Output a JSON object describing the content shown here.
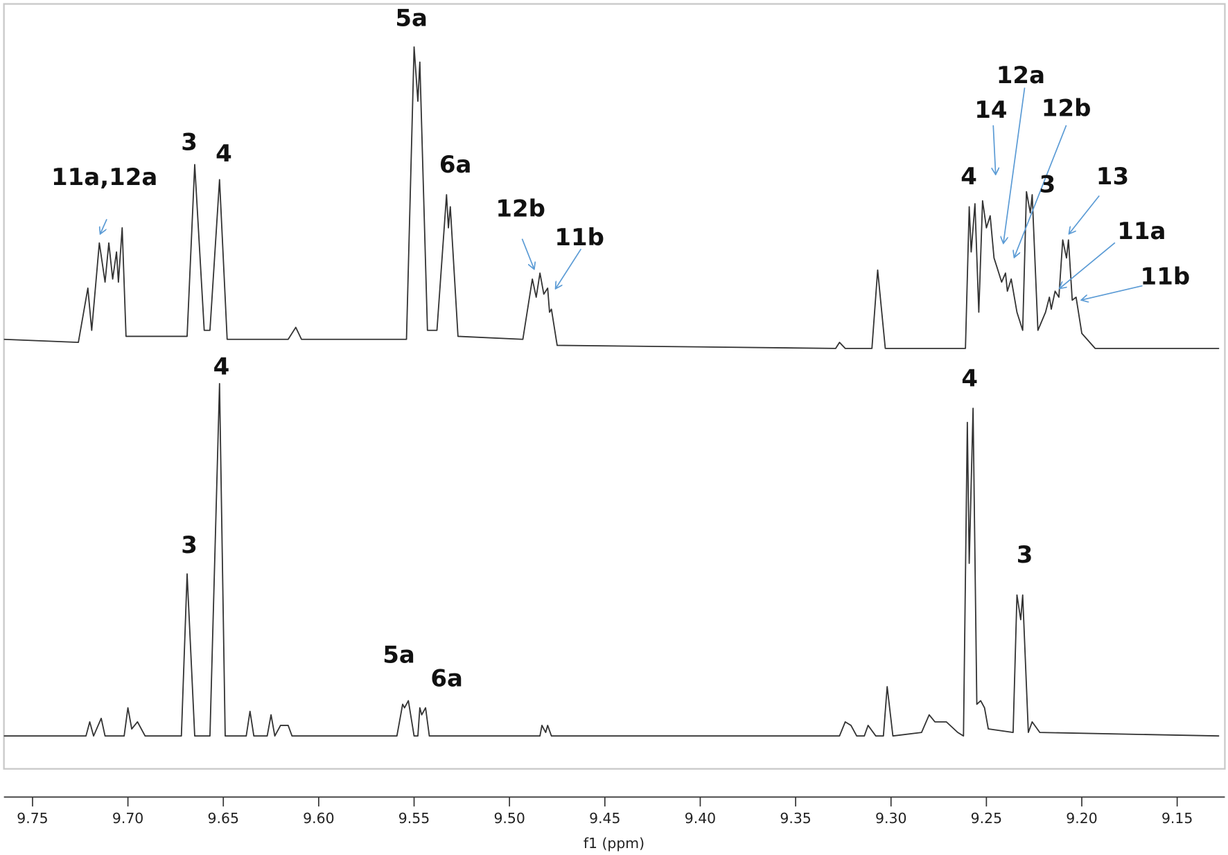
{
  "chart_data": [
    {
      "type": "line",
      "color": "#333333",
      "xlim": [
        9.765,
        9.125
      ],
      "ylim": [
        0,
        100
      ],
      "x": [
        9.765,
        9.726,
        9.721,
        9.719,
        9.715,
        9.712,
        9.71,
        9.708,
        9.706,
        9.705,
        9.703,
        9.701,
        9.669,
        9.665,
        9.66,
        9.657,
        9.652,
        9.648,
        9.616,
        9.612,
        9.609,
        9.554,
        9.55,
        9.548,
        9.547,
        9.543,
        9.538,
        9.533,
        9.532,
        9.531,
        9.527,
        9.493,
        9.488,
        9.486,
        9.484,
        9.482,
        9.48,
        9.479,
        9.478,
        9.475,
        9.329,
        9.327,
        9.324,
        9.31,
        9.307,
        9.303,
        9.261,
        9.259,
        9.258,
        9.256,
        9.254,
        9.252,
        9.25,
        9.248,
        9.246,
        9.244,
        9.242,
        9.24,
        9.239,
        9.237,
        9.234,
        9.231,
        9.229,
        9.227,
        9.226,
        9.223,
        9.219,
        9.217,
        9.216,
        9.214,
        9.212,
        9.21,
        9.208,
        9.207,
        9.205,
        9.203,
        9.2,
        9.193,
        9.128
      ],
      "values": [
        3,
        2,
        20,
        6,
        35,
        22,
        35,
        23,
        32,
        22,
        40,
        4,
        4,
        61,
        6,
        6,
        56,
        3,
        3,
        7,
        3,
        3,
        100,
        82,
        95,
        6,
        6,
        51,
        40,
        47,
        4,
        3,
        23,
        17,
        25,
        18,
        20,
        12,
        13,
        1,
        0,
        2,
        0,
        0,
        26,
        0,
        0,
        47,
        32,
        48,
        12,
        49,
        40,
        44,
        30,
        26,
        22,
        25,
        19,
        23,
        12,
        6,
        52,
        45,
        51,
        6,
        12,
        17,
        13,
        19,
        17,
        36,
        30,
        36,
        16,
        17,
        5,
        0,
        0
      ],
      "annotations": [
        "5a",
        "3",
        "4",
        "11a,12a",
        "6a",
        "12b",
        "11b",
        "12a",
        "14",
        "12b",
        "4",
        "3",
        "13",
        "11a",
        "11b"
      ]
    },
    {
      "type": "line",
      "color": "#333333",
      "xlim": [
        9.765,
        9.125
      ],
      "ylim": [
        0,
        100
      ],
      "x": [
        9.765,
        9.722,
        9.72,
        9.718,
        9.714,
        9.712,
        9.702,
        9.7,
        9.698,
        9.695,
        9.691,
        9.672,
        9.669,
        9.665,
        9.657,
        9.652,
        9.649,
        9.638,
        9.636,
        9.634,
        9.627,
        9.625,
        9.623,
        9.62,
        9.616,
        9.614,
        9.559,
        9.556,
        9.555,
        9.553,
        9.55,
        9.548,
        9.547,
        9.546,
        9.544,
        9.542,
        9.484,
        9.483,
        9.481,
        9.48,
        9.478,
        9.327,
        9.324,
        9.321,
        9.318,
        9.314,
        9.312,
        9.308,
        9.304,
        9.302,
        9.299,
        9.284,
        9.28,
        9.277,
        9.271,
        9.265,
        9.262,
        9.26,
        9.259,
        9.257,
        9.255,
        9.253,
        9.251,
        9.249,
        9.236,
        9.234,
        9.232,
        9.231,
        9.228,
        9.226,
        9.222,
        9.128
      ],
      "values": [
        0,
        0,
        4,
        0,
        5,
        0,
        0,
        8,
        2,
        4,
        0,
        0,
        46,
        0,
        0,
        100,
        0,
        0,
        7,
        0,
        0,
        6,
        0,
        3,
        3,
        0,
        0,
        9,
        8,
        10,
        0,
        0,
        8,
        6,
        8,
        0,
        0,
        3,
        1,
        3,
        0,
        0,
        4,
        3,
        0,
        0,
        3,
        0,
        0,
        14,
        0,
        1,
        6,
        4,
        4,
        1,
        0,
        89,
        49,
        93,
        9,
        10,
        8,
        2,
        1,
        40,
        33,
        40,
        1,
        4,
        1,
        0
      ],
      "annotations": [
        "4",
        "3",
        "5a",
        "6a",
        "4",
        "3"
      ],
      "xlabel": "f1 (ppm)",
      "xticks": [
        9.75,
        {
          "value": 9.7,
          "label": "9.70"
        },
        9.65,
        {
          "value": 9.6,
          "label": "9.60"
        },
        9.55,
        {
          "value": 9.5,
          "label": "9.50"
        },
        9.45,
        {
          "value": 9.4,
          "label": "9.40"
        },
        9.35,
        {
          "value": 9.3,
          "label": "9.30"
        },
        9.25,
        {
          "value": 9.2,
          "label": "9.20"
        },
        9.15
      ]
    }
  ]
}
